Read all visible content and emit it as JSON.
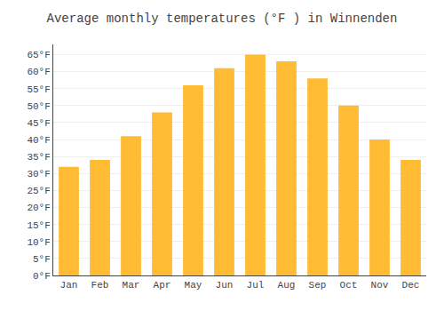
{
  "chart_data": {
    "type": "bar",
    "title": "Average monthly temperatures (°F ) in Winnenden",
    "categories": [
      "Jan",
      "Feb",
      "Mar",
      "Apr",
      "May",
      "Jun",
      "Jul",
      "Aug",
      "Sep",
      "Oct",
      "Nov",
      "Dec"
    ],
    "values": [
      32,
      34,
      41,
      48,
      56,
      61,
      65,
      63,
      58,
      50,
      40,
      34
    ],
    "color": "#FFBB33",
    "ylim": [
      0,
      68
    ],
    "yticks": [
      {
        "value": 0,
        "label": "0°F"
      },
      {
        "value": 5,
        "label": "5°F"
      },
      {
        "value": 10,
        "label": "10°F"
      },
      {
        "value": 15,
        "label": "15°F"
      },
      {
        "value": 20,
        "label": "20°F"
      },
      {
        "value": 25,
        "label": "25°F"
      },
      {
        "value": 30,
        "label": "30°F"
      },
      {
        "value": 35,
        "label": "35°F"
      },
      {
        "value": 40,
        "label": "40°F"
      },
      {
        "value": 45,
        "label": "45°F"
      },
      {
        "value": 50,
        "label": "50°F"
      },
      {
        "value": 55,
        "label": "55°F"
      },
      {
        "value": 60,
        "label": "60°F"
      },
      {
        "value": 65,
        "label": "65°F"
      }
    ],
    "grid": true
  }
}
